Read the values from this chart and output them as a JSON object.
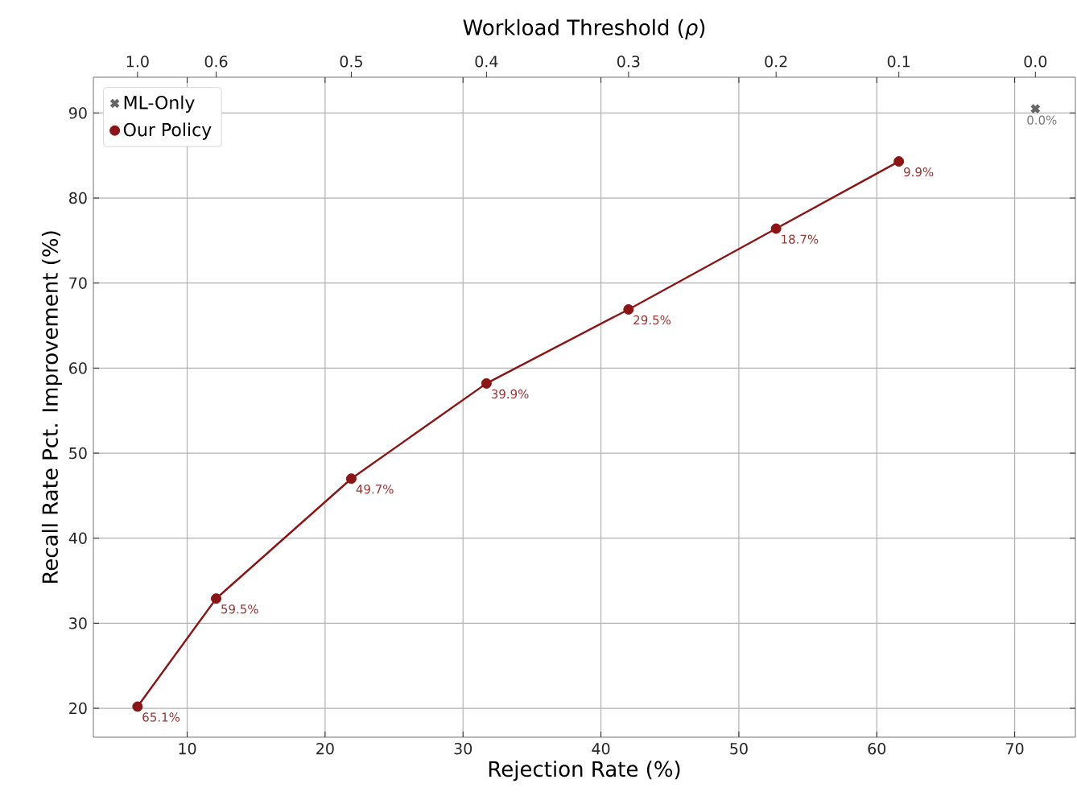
{
  "chart_data": {
    "type": "line",
    "xlabel": "Rejection Rate (%)",
    "ylabel": "Recall Rate Pct. Improvement (%)",
    "x2label": "Workload Threshold (*ρ*)",
    "xlim": [
      3.2,
      74.4
    ],
    "ylim": [
      16.6,
      94.2
    ],
    "xticks": [
      10,
      20,
      30,
      40,
      50,
      60,
      70
    ],
    "yticks": [
      20,
      30,
      40,
      50,
      60,
      70,
      80,
      90
    ],
    "grid": true,
    "legend": "top left",
    "series": [
      {
        "name": "ML-Only",
        "type": "scatter",
        "marker": "cross",
        "color": "#666666",
        "x": [
          71.5
        ],
        "values": [
          90.5
        ]
      },
      {
        "name": "Our Policy",
        "marker": "circle",
        "color": "#8b1414",
        "x": [
          6.4,
          12.1,
          21.9,
          31.7,
          42.0,
          52.7,
          61.6
        ],
        "values": [
          20.2,
          32.9,
          47.0,
          58.2,
          66.9,
          76.4,
          84.3
        ]
      }
    ],
    "annotations": [
      {
        "text": "0.0%",
        "x": 71.5,
        "y": 90.5
      },
      {
        "text": "65.1%",
        "x": 6.4,
        "y": 20.2
      },
      {
        "text": "59.5%",
        "x": 12.1,
        "y": 32.9
      },
      {
        "text": "49.7%",
        "x": 21.9,
        "y": 47.0
      },
      {
        "text": "39.9%",
        "x": 31.7,
        "y": 58.2
      },
      {
        "text": "29.5%",
        "x": 42.0,
        "y": 66.9
      },
      {
        "text": "18.7%",
        "x": 52.7,
        "y": 76.4
      },
      {
        "text": "9.9%",
        "x": 61.6,
        "y": 84.3
      },
      "1.0",
      "0.6",
      "0.5",
      "0.4",
      "0.3",
      "0.2",
      "0.1",
      "0.0"
    ]
  }
}
